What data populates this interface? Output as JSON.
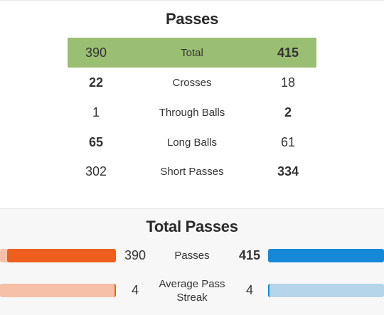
{
  "passes": {
    "title": "Passes",
    "rows": [
      {
        "left": "390",
        "label": "Total",
        "right": "415",
        "lead": "right",
        "highlight": true
      },
      {
        "left": "22",
        "label": "Crosses",
        "right": "18",
        "lead": "left",
        "highlight": false
      },
      {
        "left": "1",
        "label": "Through Balls",
        "right": "2",
        "lead": "right",
        "highlight": false
      },
      {
        "left": "65",
        "label": "Long Balls",
        "right": "61",
        "lead": "left",
        "highlight": false
      },
      {
        "left": "302",
        "label": "Short Passes",
        "right": "334",
        "lead": "right",
        "highlight": false
      }
    ]
  },
  "total_passes": {
    "title": "Total Passes",
    "rows": [
      {
        "label": "Passes",
        "left": "390",
        "right": "415",
        "lead": "right",
        "left_fraction": 0.94,
        "right_fraction": 1.0
      },
      {
        "label": "Average Pass Streak",
        "left": "4",
        "right": "4",
        "lead": "none",
        "left_fraction": 1.0,
        "right_fraction": 1.0
      }
    ]
  },
  "colors": {
    "highlight_row": "#9bbf72",
    "left_bar_strong": "#ee5f1d",
    "left_bar_light": "#f6c0a8",
    "right_bar_strong": "#1589d8",
    "right_bar_light": "#b5d6ea"
  }
}
